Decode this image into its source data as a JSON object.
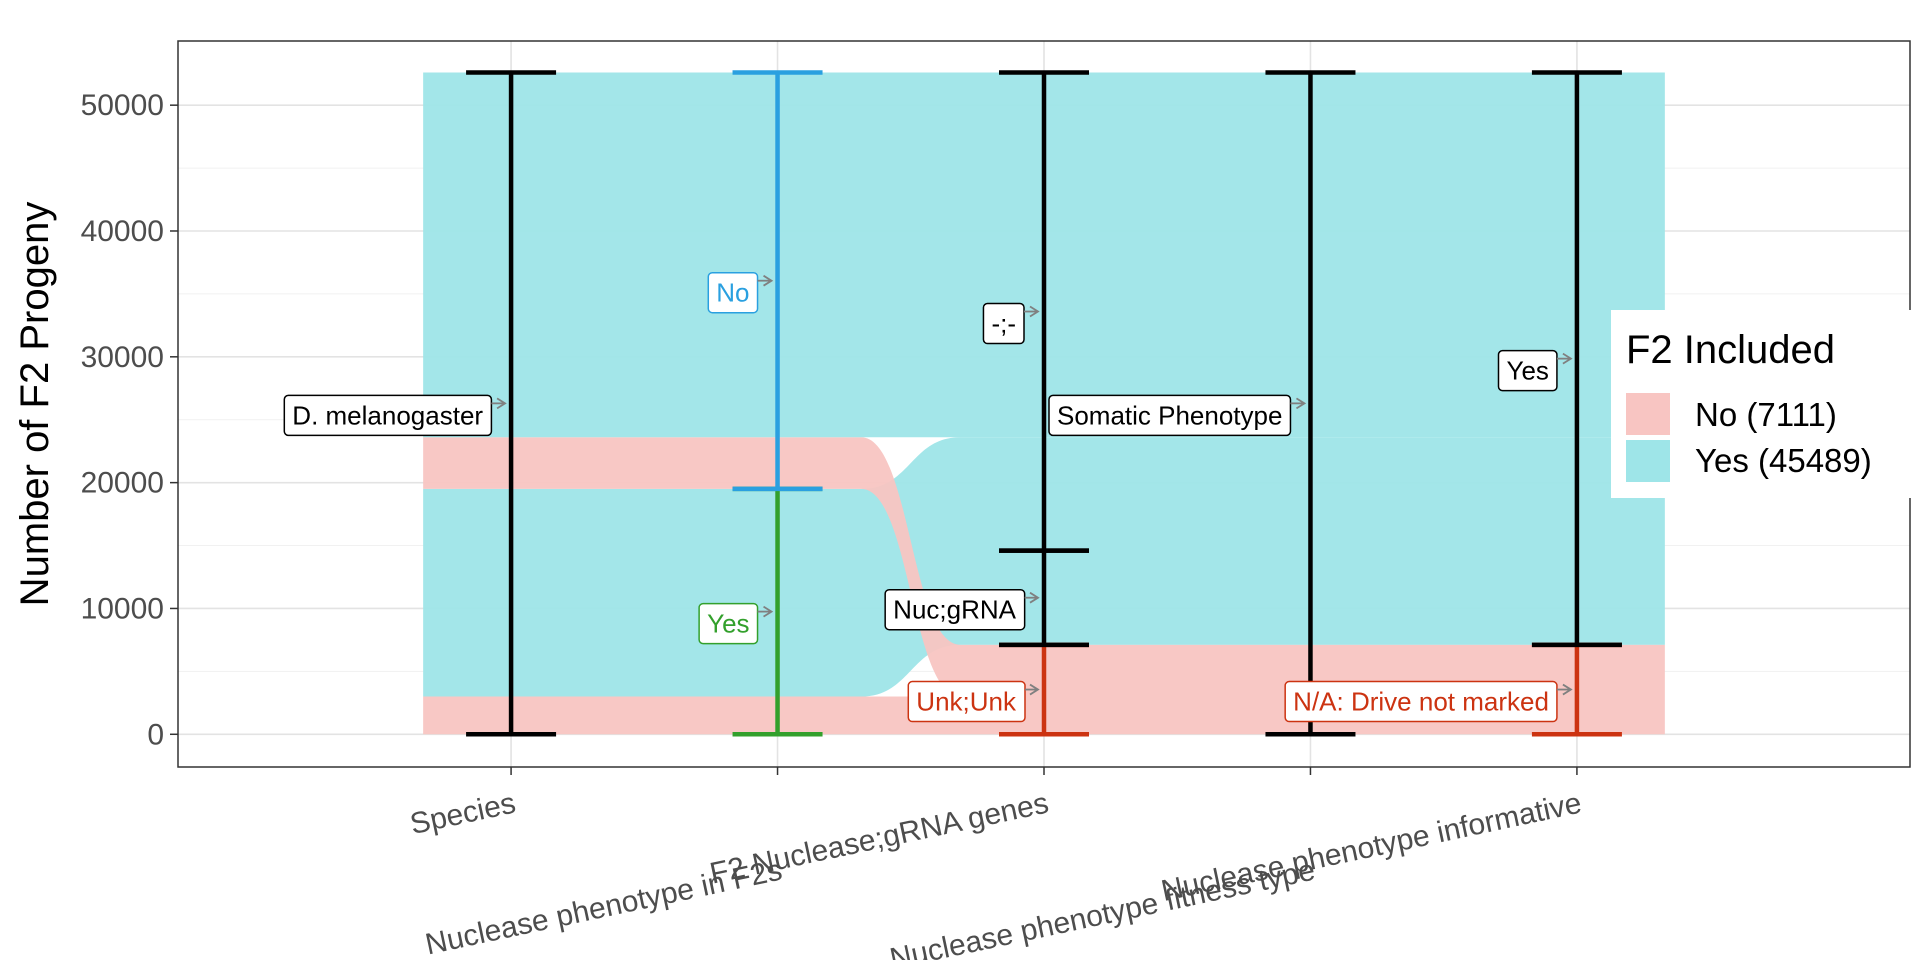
{
  "chart_data": {
    "type": "alluvial",
    "title": "",
    "xlabel": "",
    "ylabel": "Number of F2 Progeny",
    "ylim": [
      -2600,
      55100
    ],
    "yticks": [
      0,
      10000,
      20000,
      30000,
      40000,
      50000
    ],
    "categories": [
      "Species",
      "Nuclease phenotype in F2s",
      "F2 Nuclease;gRNA genes",
      "Nuclease phenotype fitness type",
      "Nuclease phenotype informative"
    ],
    "total": 52600,
    "legend": {
      "title": "F2 Included",
      "placement": "right",
      "entries": [
        {
          "name": "No (7111)",
          "color": "#f8c5c2"
        },
        {
          "name": "Yes (45489)",
          "color": "#9ee5e8"
        }
      ]
    },
    "strata": [
      {
        "axis": 0,
        "label": "D. melanogaster",
        "value": 52600,
        "color": "#000000",
        "label_color": "#000000"
      },
      {
        "axis": 1,
        "label": "Yes",
        "value": 19500,
        "color": "#33a02c",
        "label_color": "#33a02c"
      },
      {
        "axis": 1,
        "label": "No",
        "value": 33100,
        "color": "#2aa0e0",
        "label_color": "#2aa0e0"
      },
      {
        "axis": 2,
        "label": "Unk;Unk",
        "value": 7111,
        "color": "#cc3311",
        "label_color": "#cc3311"
      },
      {
        "axis": 2,
        "label": "Nuc;gRNA",
        "value": 7489,
        "color": "#000000",
        "label_color": "#000000"
      },
      {
        "axis": 2,
        "label": "-;-",
        "value": 38000,
        "color": "#000000",
        "label_color": "#000000"
      },
      {
        "axis": 3,
        "label": "Somatic Phenotype",
        "value": 52600,
        "color": "#000000",
        "label_color": "#000000"
      },
      {
        "axis": 4,
        "label": "N/A: Drive not marked",
        "value": 7111,
        "color": "#cc3311",
        "label_color": "#cc3311"
      },
      {
        "axis": 4,
        "label": "Yes",
        "value": 45489,
        "color": "#000000",
        "label_color": "#000000"
      }
    ],
    "flows": [
      {
        "included": "No",
        "value": 3000,
        "path": [
          {
            "axis": 0,
            "y0": 0,
            "y1": 3000
          },
          {
            "axis": 1,
            "y0": 0,
            "y1": 3000
          },
          {
            "axis": 2,
            "y0": 0,
            "y1": 3000
          },
          {
            "axis": 3,
            "y0": 0,
            "y1": 3000
          },
          {
            "axis": 4,
            "y0": 0,
            "y1": 3000
          }
        ]
      },
      {
        "included": "Yes",
        "value": 16500,
        "path": [
          {
            "axis": 0,
            "y0": 3000,
            "y1": 19500
          },
          {
            "axis": 1,
            "y0": 3000,
            "y1": 19500
          },
          {
            "axis": 2,
            "y0": 7111,
            "y1": 23611
          },
          {
            "axis": 3,
            "y0": 7111,
            "y1": 23611
          },
          {
            "axis": 4,
            "y0": 7111,
            "y1": 23611
          }
        ]
      },
      {
        "included": "No",
        "value": 4111,
        "path": [
          {
            "axis": 0,
            "y0": 19500,
            "y1": 23611
          },
          {
            "axis": 1,
            "y0": 19500,
            "y1": 23611
          },
          {
            "axis": 2,
            "y0": 3000,
            "y1": 7111
          },
          {
            "axis": 3,
            "y0": 3000,
            "y1": 7111
          },
          {
            "axis": 4,
            "y0": 3000,
            "y1": 7111
          }
        ]
      },
      {
        "included": "Yes",
        "value": 28989,
        "path": [
          {
            "axis": 0,
            "y0": 23611,
            "y1": 52600
          },
          {
            "axis": 1,
            "y0": 23611,
            "y1": 52600
          },
          {
            "axis": 2,
            "y0": 23611,
            "y1": 52600
          },
          {
            "axis": 3,
            "y0": 23611,
            "y1": 52600
          },
          {
            "axis": 4,
            "y0": 23611,
            "y1": 52600
          }
        ]
      }
    ]
  }
}
